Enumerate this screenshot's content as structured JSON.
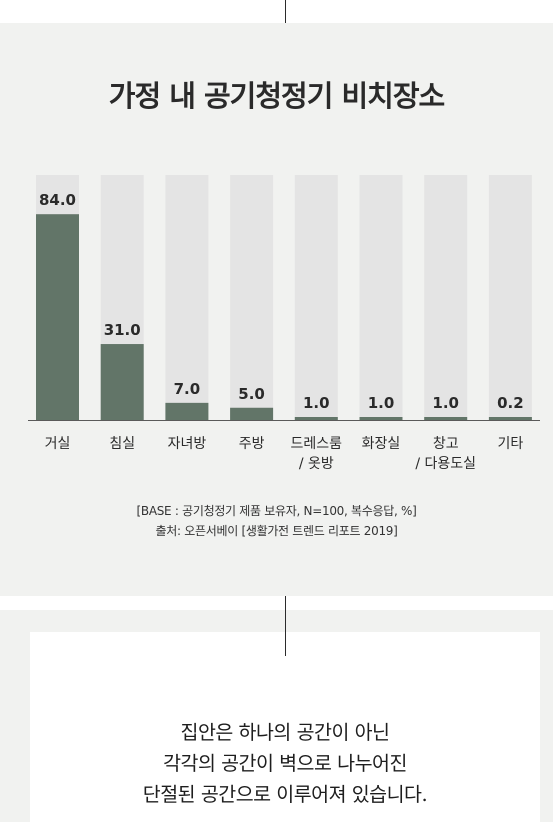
{
  "chart_data": {
    "type": "bar",
    "title": "가정 내 공기청정기 비치장소",
    "categories": [
      [
        "거실"
      ],
      [
        "침실"
      ],
      [
        "자녀방"
      ],
      [
        "주방"
      ],
      [
        "드레스룸",
        "/ 옷방"
      ],
      [
        "화장실"
      ],
      [
        "창고",
        "/ 다용도실"
      ],
      [
        "기타"
      ]
    ],
    "values": [
      84.0,
      31.0,
      7.0,
      5.0,
      1.0,
      1.0,
      1.0,
      0.2
    ],
    "value_labels": [
      "84.0",
      "31.0",
      "7.0",
      "5.0",
      "1.0",
      "1.0",
      "1.0",
      "0.2"
    ],
    "ylim": [
      0,
      100
    ],
    "grid": false,
    "bar_color": "#627568",
    "track_color": "#e4e4e4"
  },
  "notes": {
    "base": "[BASE : 공기청정기 제품 보유자, N=100, 복수응답, %]",
    "source": "출처: 오픈서베이 [생활가전 트렌드 리포트 2019]"
  },
  "quote": {
    "lines": [
      "집안은 하나의 공간이 아닌",
      "각각의 공간이 벽으로 나누어진",
      "단절된 공간으로 이루어져 있습니다."
    ]
  },
  "colors": {
    "panel_bg": "#f1f2f0",
    "divider": "#2b2b2b"
  }
}
